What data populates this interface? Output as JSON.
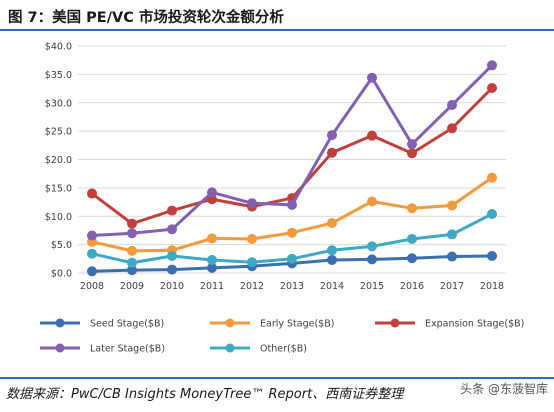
{
  "title": "图 7：美国 PE/VC 市场投资轮次金额分析",
  "source_note": "数据来源：PwC/CB Insights MoneyTree™ Report、西南证券整理",
  "watermark": "头条 @东菠智库",
  "colors": {
    "accent_rule": "#2e6fb5",
    "grid": "#d9d9d9",
    "axis_text": "#404040"
  },
  "chart_data": {
    "type": "line",
    "title": "",
    "xlabel": "",
    "ylabel": "",
    "x": [
      "2008",
      "2009",
      "2010",
      "2011",
      "2012",
      "2013",
      "2014",
      "2015",
      "2016",
      "2017",
      "2018"
    ],
    "ylim": [
      0,
      40
    ],
    "yticks": [
      0,
      5,
      10,
      15,
      20,
      25,
      30,
      35,
      40
    ],
    "ytick_labels": [
      "$0.0",
      "$5.0",
      "$10.0",
      "$15.0",
      "$20.0",
      "$25.0",
      "$30.0",
      "$35.0",
      "$40.0"
    ],
    "grid": true,
    "legend_position": "bottom",
    "series": [
      {
        "name": "Seed Stage($B)",
        "color": "#3a6fb0",
        "values": [
          0.3,
          0.5,
          0.6,
          0.9,
          1.2,
          1.7,
          2.3,
          2.4,
          2.6,
          2.9,
          3.0
        ]
      },
      {
        "name": "Early Stage($B)",
        "color": "#f39a3c",
        "values": [
          5.5,
          3.9,
          4.0,
          6.1,
          6.0,
          7.1,
          8.8,
          12.6,
          11.4,
          11.9,
          16.8
        ]
      },
      {
        "name": "Expansion Stage($B)",
        "color": "#c0413c",
        "values": [
          14.0,
          8.7,
          11.0,
          13.0,
          11.7,
          13.2,
          21.2,
          24.2,
          21.1,
          25.5,
          32.6
        ]
      },
      {
        "name": "Later Stage($B)",
        "color": "#8460b0",
        "values": [
          6.6,
          7.0,
          7.7,
          14.2,
          12.3,
          12.0,
          24.3,
          34.4,
          22.7,
          29.6,
          36.6
        ]
      },
      {
        "name": "Other($B)",
        "color": "#3fa8c2",
        "values": [
          3.4,
          1.8,
          3.0,
          2.3,
          1.9,
          2.5,
          4.0,
          4.7,
          6.0,
          6.8,
          10.4
        ]
      }
    ]
  }
}
